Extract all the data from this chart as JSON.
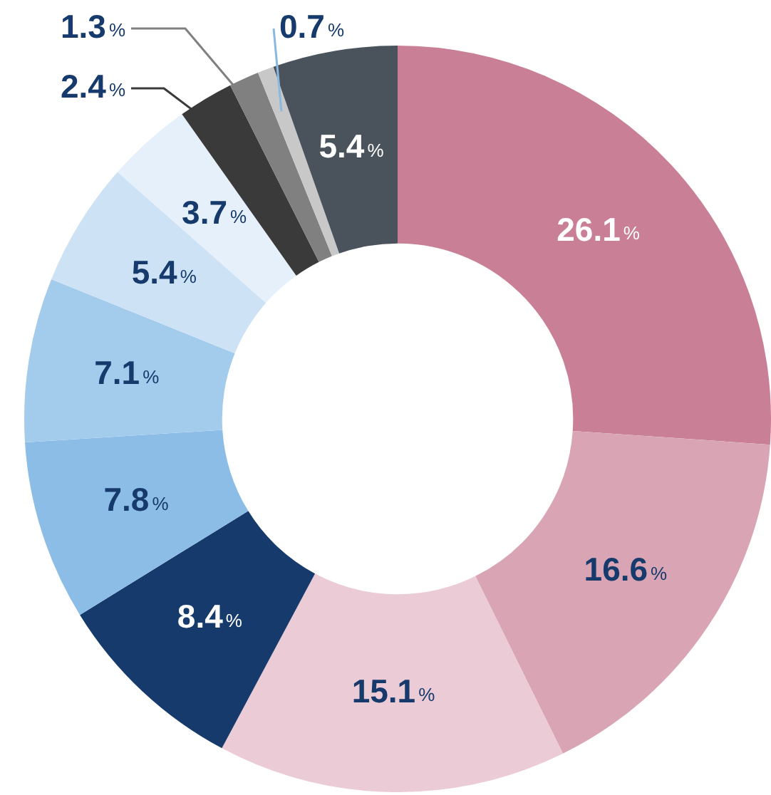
{
  "chart_data": {
    "type": "donut",
    "categories": [
      null,
      null,
      null,
      null,
      null,
      null,
      null,
      null,
      null,
      null,
      null,
      null
    ],
    "values": [
      26.1,
      16.6,
      15.1,
      8.4,
      7.8,
      7.1,
      5.4,
      3.7,
      2.4,
      1.3,
      0.7,
      5.4
    ],
    "colors": [
      "#c97f96",
      "#d9a5b5",
      "#ebcbd6",
      "#163a6b",
      "#8bbde6",
      "#a3cbec",
      "#cde2f4",
      "#e5f0fa",
      "#3a3a3a",
      "#808080",
      "#c8c8c8",
      "#4a535c"
    ],
    "value_labels": [
      "26.1%",
      "16.6%",
      "15.1%",
      "8.4%",
      "7.8%",
      "7.1%",
      "5.4%",
      "3.7%",
      "2.4%",
      "1.3%",
      "0.7%",
      "5.4%"
    ],
    "legend": false
  }
}
